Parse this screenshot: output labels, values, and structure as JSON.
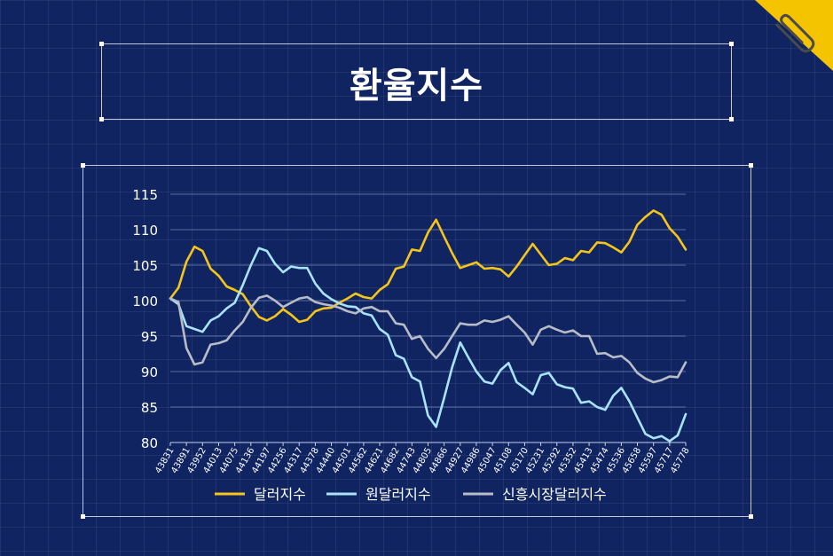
{
  "title": "환율지수",
  "icons": {
    "corner": "paperclip-icon"
  },
  "colors": {
    "background": "#0f2461",
    "accent": "#f5c400"
  },
  "chart_data": {
    "type": "line",
    "title": "",
    "xlabel": "",
    "ylabel": "",
    "ylim": [
      80,
      115
    ],
    "yticks": [
      80,
      85,
      90,
      95,
      100,
      105,
      110,
      115
    ],
    "x_tick_labels": [
      "43831",
      "43891",
      "43952",
      "44013",
      "44075",
      "44136",
      "44197",
      "44256",
      "44317",
      "44378",
      "44440",
      "44501",
      "44562",
      "44621",
      "44682",
      "44743",
      "44805",
      "44866",
      "44927",
      "44986",
      "45047",
      "45108",
      "45170",
      "45231",
      "45292",
      "45352",
      "45413",
      "45474",
      "45536",
      "45658",
      "45597",
      "45717",
      "45778"
    ],
    "legend_position": "bottom",
    "grid": true,
    "series": [
      {
        "name": "달러지수",
        "color": "#f5c518",
        "values": [
          100.3,
          101.8,
          105.5,
          107.6,
          107.0,
          104.5,
          103.5,
          102.0,
          101.5,
          100.9,
          99.2,
          97.7,
          97.2,
          97.8,
          98.8,
          98.0,
          97.0,
          97.3,
          98.5,
          98.9,
          99.0,
          99.7,
          100.3,
          101.0,
          100.5,
          100.3,
          101.5,
          102.3,
          104.5,
          104.8,
          107.2,
          107.0,
          109.6,
          111.4,
          109.0,
          106.7,
          104.6,
          105.0,
          105.4,
          104.5,
          104.6,
          104.4,
          103.4,
          104.8,
          106.4,
          108.0,
          106.5,
          105.0,
          105.2,
          106.0,
          105.7,
          107.0,
          106.8,
          108.2,
          108.1,
          107.5,
          106.8,
          108.3,
          110.7,
          111.8,
          112.7,
          112.1,
          110.2,
          109.0,
          107.2
        ]
      },
      {
        "name": "원달러지수",
        "color": "#a9e3f7",
        "values": [
          100.3,
          99.5,
          96.4,
          96.0,
          95.6,
          97.2,
          97.8,
          98.9,
          99.7,
          102.2,
          105.0,
          107.4,
          107.0,
          105.2,
          104.0,
          104.8,
          104.6,
          104.6,
          102.4,
          101.0,
          100.2,
          99.6,
          99.2,
          99.1,
          98.2,
          97.9,
          96.0,
          95.2,
          92.3,
          91.8,
          89.2,
          88.6,
          83.8,
          82.2,
          86.3,
          90.6,
          94.1,
          92.0,
          90.0,
          88.6,
          88.3,
          90.2,
          91.2,
          88.5,
          87.7,
          86.8,
          89.5,
          89.8,
          88.2,
          87.8,
          87.6,
          85.6,
          85.8,
          85.0,
          84.6,
          86.6,
          87.7,
          85.8,
          83.5,
          81.2,
          80.6,
          80.9,
          80.2,
          81.0,
          84.0
        ]
      },
      {
        "name": "신흥시장달러지수",
        "color": "#b8bcc7",
        "values": [
          100.3,
          99.8,
          93.3,
          91.0,
          91.3,
          93.8,
          94.0,
          94.4,
          95.8,
          97.0,
          99.0,
          100.4,
          100.7,
          100.0,
          99.1,
          99.7,
          100.3,
          100.5,
          99.8,
          99.5,
          99.3,
          99.0,
          98.5,
          98.2,
          98.9,
          99.1,
          98.5,
          98.5,
          96.8,
          96.6,
          94.6,
          95.0,
          93.2,
          91.9,
          93.2,
          95.0,
          96.8,
          96.6,
          96.6,
          97.2,
          97.0,
          97.3,
          97.8,
          96.6,
          95.5,
          93.8,
          95.9,
          96.4,
          95.9,
          95.5,
          95.8,
          95.0,
          95.0,
          92.5,
          92.6,
          92.0,
          92.2,
          91.3,
          89.8,
          89.0,
          88.5,
          88.8,
          89.3,
          89.2,
          91.3
        ]
      }
    ]
  }
}
